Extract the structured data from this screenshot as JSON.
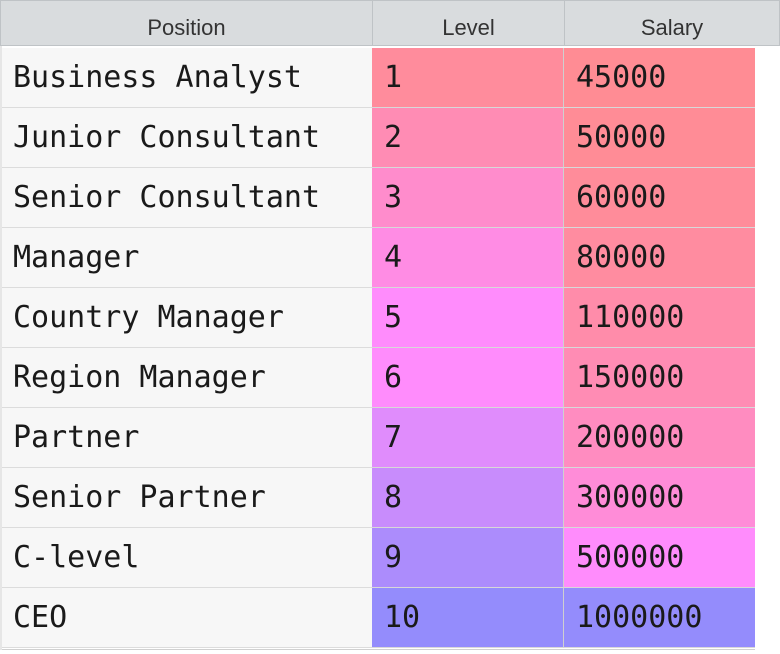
{
  "table": {
    "columns": [
      "Position",
      "Level",
      "Salary"
    ],
    "rows": [
      {
        "position": "Business Analyst",
        "level": "1",
        "salary": "45000",
        "level_color": "#ff8c9c",
        "salary_color": "#ff8c94"
      },
      {
        "position": "Junior Consultant",
        "level": "2",
        "salary": "50000",
        "level_color": "#ff8cb4",
        "salary_color": "#ff8c96"
      },
      {
        "position": "Senior Consultant",
        "level": "3",
        "salary": "60000",
        "level_color": "#ff8ccc",
        "salary_color": "#ff8c9a"
      },
      {
        "position": "Manager",
        "level": "4",
        "salary": "80000",
        "level_color": "#ff8ce4",
        "salary_color": "#ff8ca0"
      },
      {
        "position": "Country Manager",
        "level": "5",
        "salary": "110000",
        "level_color": "#ff8cfc",
        "salary_color": "#ff8caa"
      },
      {
        "position": "Region Manager",
        "level": "6",
        "salary": "150000",
        "level_color": "#ff8cfc",
        "salary_color": "#ff8cb4"
      },
      {
        "position": "Partner",
        "level": "7",
        "salary": "200000",
        "level_color": "#e08cfc",
        "salary_color": "#ff8cc0"
      },
      {
        "position": "Senior Partner",
        "level": "8",
        "salary": "300000",
        "level_color": "#c88cfc",
        "salary_color": "#ff8cd8"
      },
      {
        "position": "C-level",
        "level": "9",
        "salary": "500000",
        "level_color": "#ac8cfc",
        "salary_color": "#ff8cfc"
      },
      {
        "position": "CEO",
        "level": "10",
        "salary": "1000000",
        "level_color": "#948cfc",
        "salary_color": "#948cfc"
      }
    ]
  }
}
